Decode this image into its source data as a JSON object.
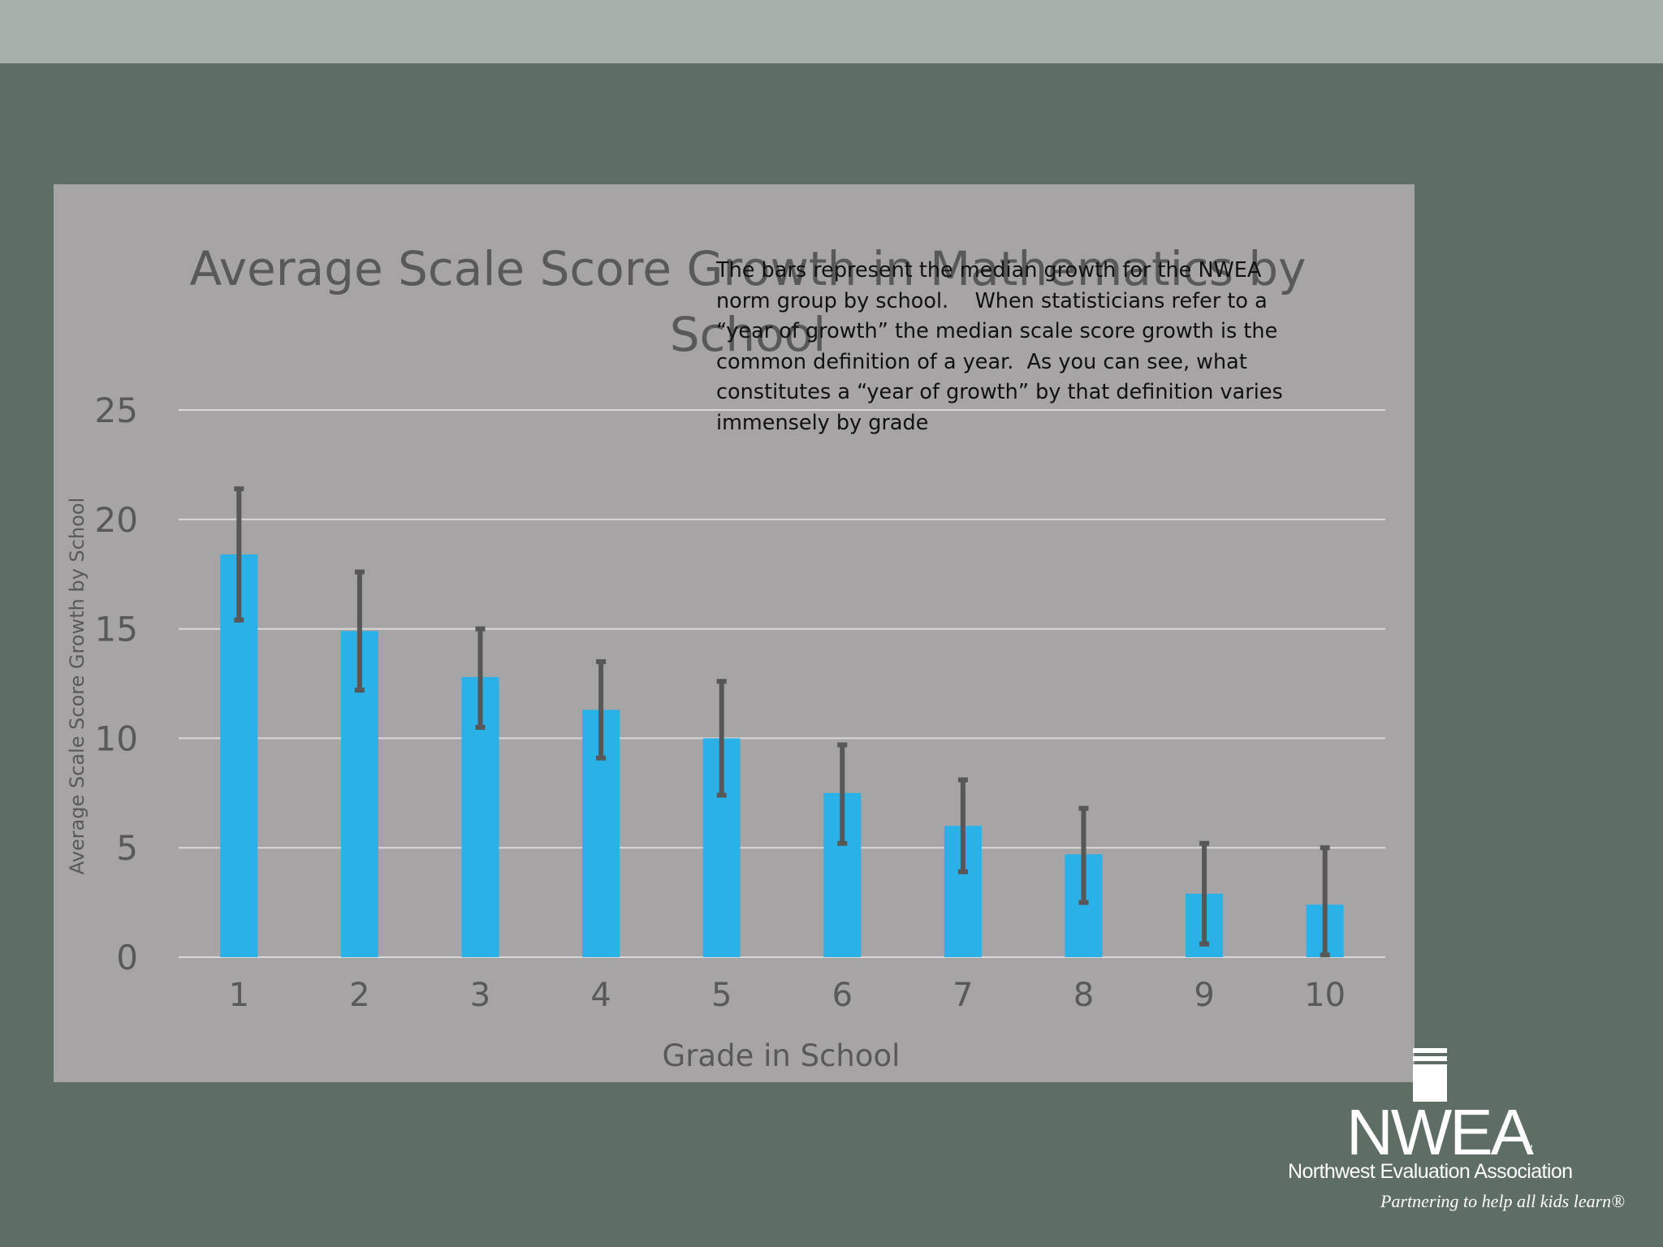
{
  "chart_data": {
    "type": "bar",
    "title": "Average Scale Score Growth in Mathematics by School",
    "xlabel": "Grade in School",
    "ylabel": "Average Scale Score Growth by School",
    "categories": [
      "1",
      "2",
      "3",
      "4",
      "5",
      "6",
      "7",
      "8",
      "9",
      "10"
    ],
    "values": [
      18.4,
      14.9,
      12.8,
      11.3,
      10.0,
      7.5,
      6.0,
      4.7,
      2.9,
      2.4
    ],
    "error_low": [
      15.4,
      12.2,
      10.5,
      9.1,
      7.4,
      5.2,
      3.9,
      2.5,
      0.6,
      0.1
    ],
    "error_high": [
      21.4,
      17.6,
      15.0,
      13.5,
      12.6,
      9.7,
      8.1,
      6.8,
      5.2,
      5.0
    ],
    "ylim": [
      0,
      25
    ],
    "yticks": [
      "0",
      "5",
      "10",
      "15",
      "20",
      "25"
    ],
    "grid": true,
    "colors": {
      "bar": "#29b1e8",
      "error_bar": "#575757",
      "gridline": "#d9d9d9",
      "text": "#595959"
    }
  },
  "annotation": "The bars represent the median growth for the NWEA norm group by school.    When statisticians refer to a “year of growth” the median scale score growth is the common definition of a year.  As you can see, what constitutes a “year of growth” by that definition varies immensely by grade",
  "logo": {
    "name": "NWEA",
    "trademark": "™",
    "organization": "Northwest Evaluation Association",
    "tagline": "Partnering to help all kids learn®"
  },
  "colors": {
    "background": "#5f6e65",
    "topbar": "#a5b1aa",
    "card": "#a6a4a5",
    "logo": "#ffffff"
  }
}
